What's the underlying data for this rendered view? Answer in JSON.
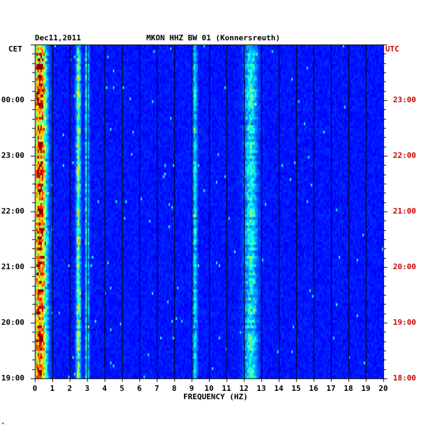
{
  "header": {
    "date": "Dec11,2011",
    "station": "MKON HHZ BW 01 (Konnersreuth)"
  },
  "left_tz": "CET",
  "right_tz": "UTC",
  "corner_mark": "*",
  "colors": {
    "background_low": "#0010a0",
    "grid": "#000000",
    "utc_text": "#cc0000",
    "cet_text": "#000000"
  },
  "chart_data": {
    "type": "heatmap",
    "title": "MKON HHZ BW 01 (Konnersreuth)",
    "xlabel": "FREQUENCY (HZ)",
    "ylabel": "",
    "x_ticks": [
      0,
      1,
      2,
      3,
      4,
      5,
      6,
      7,
      8,
      9,
      10,
      11,
      12,
      13,
      14,
      15,
      16,
      17,
      18,
      19,
      20
    ],
    "xlim": [
      0,
      20
    ],
    "left_y_ticks": [
      "19:00",
      "20:00",
      "21:00",
      "22:00",
      "23:00",
      "00:00"
    ],
    "right_y_ticks": [
      "18:00",
      "19:00",
      "20:00",
      "21:00",
      "22:00",
      "23:00"
    ],
    "time_span_hours": 6,
    "grid": true,
    "colormap": "jet",
    "energy_bands_hz": [
      {
        "center": 0.3,
        "width": 0.35,
        "strength": 0.9
      },
      {
        "center": 2.5,
        "width": 0.12,
        "strength": 0.45
      },
      {
        "center": 3.0,
        "width": 0.1,
        "strength": 0.35
      },
      {
        "center": 9.2,
        "width": 0.12,
        "strength": 0.25
      },
      {
        "center": 12.4,
        "width": 0.35,
        "strength": 0.3
      }
    ]
  }
}
